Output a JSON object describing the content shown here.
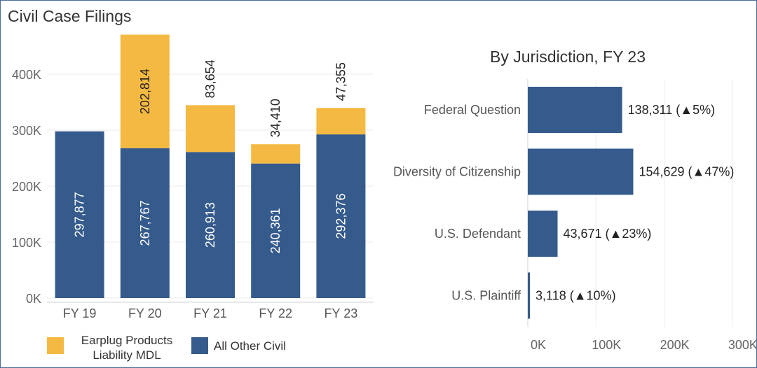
{
  "title": "Civil Case Filings",
  "chart_data": [
    {
      "type": "bar",
      "stacked": true,
      "title": "Civil Case Filings",
      "categories": [
        "FY 19",
        "FY 20",
        "FY 21",
        "FY 22",
        "FY 23"
      ],
      "series": [
        {
          "name": "All Other Civil",
          "values": [
            297877,
            267767,
            260913,
            240361,
            292376
          ],
          "color": "#355a8c"
        },
        {
          "name": "Earplug Products Liability MDL",
          "values": [
            0,
            202814,
            83654,
            34410,
            47355
          ],
          "color": "#f4b942"
        }
      ],
      "value_labels": {
        "All Other Civil": [
          "297,877",
          "267,767",
          "260,913",
          "240,361",
          "292,376"
        ],
        "Earplug Products Liability MDL": [
          "",
          "202,814",
          "83,654",
          "34,410",
          "47,355"
        ]
      },
      "ylim": [
        0,
        500000
      ],
      "yticks": [
        0,
        100000,
        200000,
        300000,
        400000
      ],
      "ytick_labels": [
        "0K",
        "100K",
        "200K",
        "300K",
        "400K"
      ],
      "grid": true,
      "legend": [
        {
          "label_lines": [
            "Earplug Products",
            "Liability MDL"
          ],
          "color": "#f4b942"
        },
        {
          "label_lines": [
            "All Other Civil"
          ],
          "color": "#355a8c"
        }
      ],
      "legend_position": "bottom-left"
    },
    {
      "type": "bar",
      "orientation": "horizontal",
      "title": "By Jurisdiction, FY 23",
      "categories": [
        "Federal Question",
        "Diversity of Citizenship",
        "U.S. Defendant",
        "U.S. Plaintiff"
      ],
      "values": [
        138311,
        154629,
        43671,
        3118
      ],
      "value_labels": [
        "138,311 (▲5%)",
        "154,629 (▲47%)",
        "43,671 (▲23%)",
        "3,118 (▲10%)"
      ],
      "color": "#355a8c",
      "xlim": [
        0,
        300000
      ],
      "xticks": [
        0,
        100000,
        200000,
        300000
      ],
      "xtick_labels": [
        "0K",
        "100K",
        "200K",
        "300K"
      ],
      "grid": true
    }
  ]
}
